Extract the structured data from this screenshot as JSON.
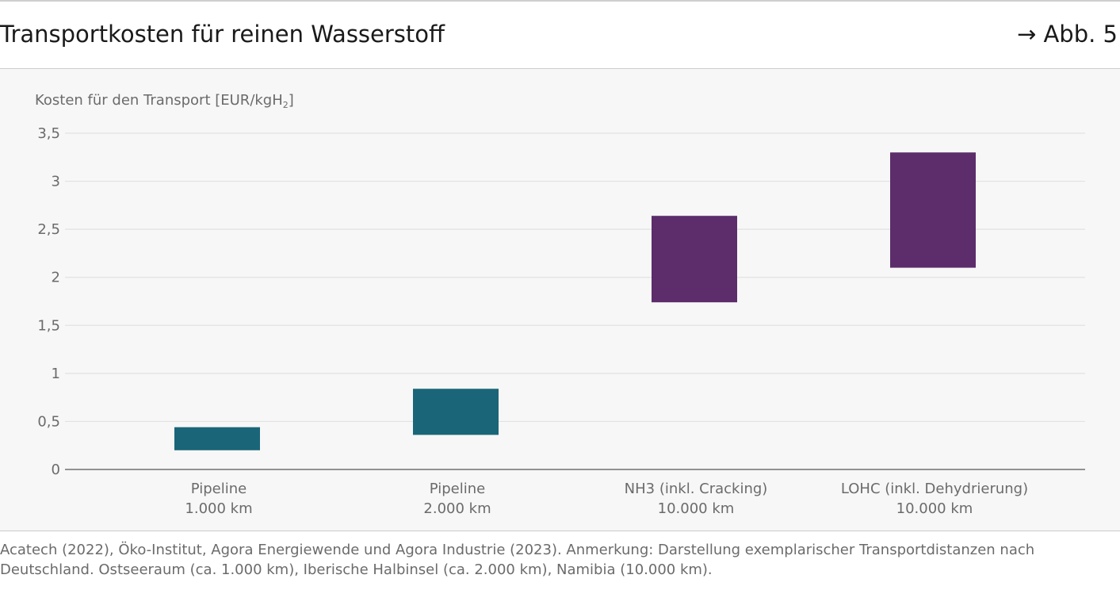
{
  "header": {
    "title": "Transportkosten für reinen Wasserstoff",
    "figure_ref": "→ Abb. 5"
  },
  "chart_data": {
    "type": "bar",
    "subtype": "floating-range",
    "ylabel_main": "Kosten für den Transport [EUR/kgH",
    "ylabel_sub": "2",
    "ylabel_tail": "]",
    "ylim": [
      0,
      3.5
    ],
    "yticks": [
      {
        "value": 0,
        "label": "0"
      },
      {
        "value": 0.5,
        "label": "0,5"
      },
      {
        "value": 1,
        "label": "1"
      },
      {
        "value": 1.5,
        "label": "1,5"
      },
      {
        "value": 2,
        "label": "2"
      },
      {
        "value": 2.5,
        "label": "2,5"
      },
      {
        "value": 3,
        "label": "3"
      },
      {
        "value": 3.5,
        "label": "3,5"
      }
    ],
    "grid": true,
    "categories": [
      {
        "line1": "Pipeline",
        "line2": "1.000 km"
      },
      {
        "line1": "Pipeline",
        "line2": "2.000 km"
      },
      {
        "line1": "NH3 (inkl. Cracking)",
        "line2": "10.000 km"
      },
      {
        "line1": "LOHC (inkl. Dehydrierung)",
        "line2": "10.000 km"
      }
    ],
    "ranges": [
      {
        "low": 0.2,
        "high": 0.44,
        "color": "#1a6578"
      },
      {
        "low": 0.36,
        "high": 0.84,
        "color": "#1a6578"
      },
      {
        "low": 1.74,
        "high": 2.64,
        "color": "#5c2d6a"
      },
      {
        "low": 2.1,
        "high": 3.3,
        "color": "#5c2d6a"
      }
    ]
  },
  "footer": {
    "source": "Acatech (2022), Öko-Institut, Agora Energiewende und Agora Industrie (2023). Anmerkung: Darstellung exemplarischer Transportdistanzen nach Deutschland. Ostseeraum (ca. 1.000 km), Iberische Halbinsel (ca. 2.000 km), Namibia (10.000 km)."
  }
}
